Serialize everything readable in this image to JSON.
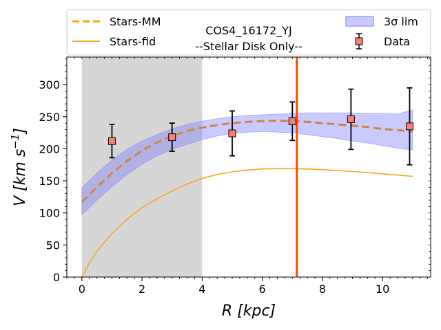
{
  "chart_data": {
    "type": "line",
    "title": "COS4_16172_YJ",
    "subtitle": "--Stellar Disk Only--",
    "xlabel_var": "R",
    "xlabel_unit": "[kpc]",
    "ylabel_var": "V",
    "ylabel_unit_prefix": "[km s",
    "ylabel_unit_exp": "−1",
    "ylabel_unit_suffix": "]",
    "xlim": [
      -0.5,
      11.6
    ],
    "ylim": [
      0,
      343
    ],
    "xticks": [
      0,
      2,
      4,
      6,
      8,
      10
    ],
    "yticks": [
      0,
      50,
      100,
      150,
      200,
      250,
      300
    ],
    "shaded_region": {
      "x_start": 0,
      "x_end": 4,
      "color": "#d6d6d6"
    },
    "vertical_line": {
      "x": 7.15,
      "color": "#ff4500"
    },
    "legend": {
      "placement": "top",
      "entries": [
        {
          "label": "Stars-MM",
          "style": "dashed",
          "color": "#ffa500"
        },
        {
          "label": "Stars-fid",
          "style": "solid",
          "color": "#f5a623"
        },
        {
          "label": "3σ lim",
          "style": "band",
          "color": "#7b7bff"
        },
        {
          "label": "Data",
          "style": "marker",
          "color": "#fa8072"
        }
      ]
    },
    "series": [
      {
        "name": "Stars-MM",
        "style": "dashed",
        "color": "#cd853f",
        "x": [
          0,
          0.5,
          1,
          1.5,
          2,
          2.5,
          3,
          3.5,
          4,
          4.5,
          5,
          5.5,
          6,
          6.5,
          7,
          7.5,
          8,
          8.5,
          9,
          9.5,
          10,
          10.5,
          11
        ],
        "values": [
          117,
          140,
          162,
          181,
          197,
          210,
          220,
          228,
          233,
          237,
          240,
          242,
          243,
          244,
          243,
          242,
          240,
          238,
          236,
          234,
          231,
          229,
          227
        ]
      },
      {
        "name": "Stars-fid",
        "style": "solid",
        "color": "#f5a623",
        "x": [
          0,
          0.25,
          0.5,
          1,
          1.5,
          2,
          2.5,
          3,
          3.5,
          4,
          4.5,
          5,
          5.5,
          6,
          6.5,
          7,
          7.5,
          8,
          8.5,
          9,
          9.5,
          10,
          10.5,
          11
        ],
        "values": [
          0,
          22,
          40,
          68,
          90,
          108,
          122,
          134,
          145,
          154,
          160,
          164,
          167,
          168.5,
          169,
          169,
          168.5,
          167.5,
          166,
          164.5,
          163,
          161,
          159,
          157
        ]
      }
    ],
    "band": {
      "name": "3σ lim",
      "color": "#7b7bff",
      "x": [
        0,
        0.5,
        1,
        1.5,
        2,
        2.5,
        3,
        3.5,
        4,
        4.5,
        5,
        5.5,
        6,
        6.5,
        7,
        7.5,
        8,
        8.5,
        9,
        9.5,
        10,
        10.5,
        11
      ],
      "lower": [
        97,
        120,
        141,
        160,
        176,
        189,
        199,
        207,
        214,
        220,
        224,
        226,
        227,
        226,
        225,
        222,
        219,
        216,
        212,
        209,
        205,
        201,
        198
      ],
      "upper": [
        139,
        162,
        182,
        199,
        212,
        222,
        231,
        238,
        243,
        247,
        250,
        252,
        253,
        254,
        255,
        256,
        256,
        256,
        256,
        255,
        255,
        254,
        261
      ]
    },
    "data_points": {
      "name": "Data",
      "color": "#fa8072",
      "x": [
        1,
        3,
        5,
        7,
        8.95,
        10.9
      ],
      "values": [
        212,
        218,
        224,
        243,
        246,
        235
      ],
      "err_low": [
        26,
        22,
        35,
        30,
        47,
        60
      ],
      "err_high": [
        26,
        22,
        35,
        30,
        47,
        60
      ]
    }
  }
}
